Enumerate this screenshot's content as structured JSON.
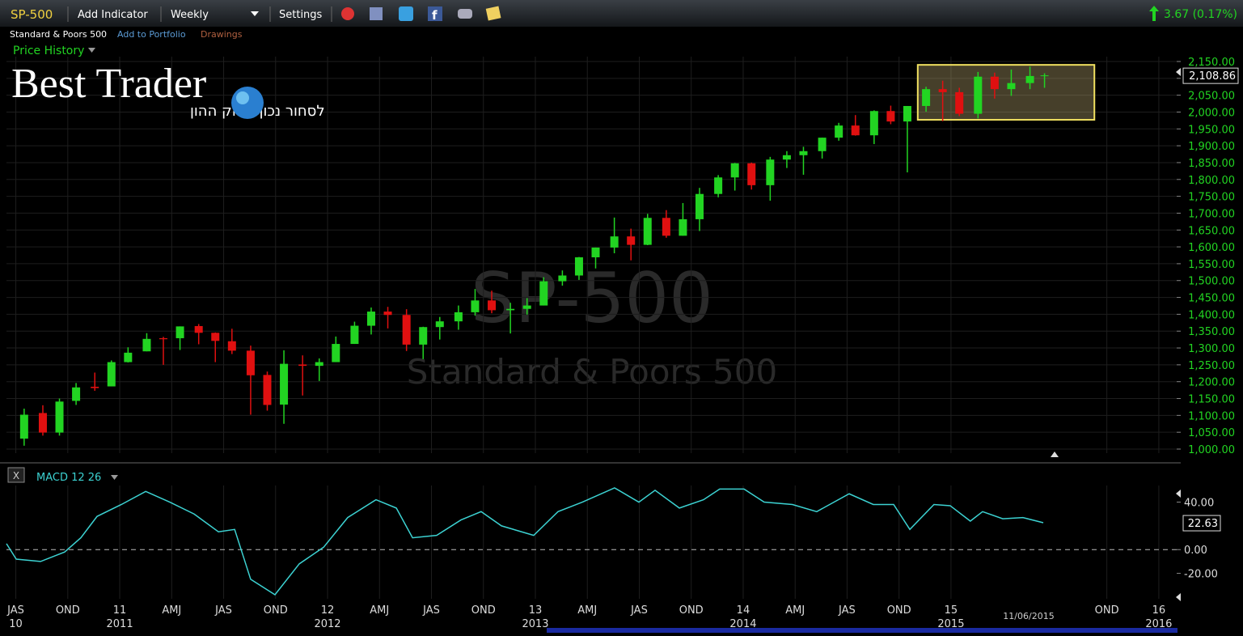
{
  "header": {
    "symbol": "SP-500",
    "add_indicator": "Add Indicator",
    "interval": "Weekly",
    "settings": "Settings",
    "change": "3.67 (0.17%)",
    "name": "Standard & Poors 500",
    "add_portfolio": "Add to Portfolio",
    "drawings": "Drawings",
    "price_history": "Price History",
    "logo": "Best Trader",
    "slogan": "לסחור נכון בשוק ההון",
    "close_button": "X",
    "date": "11/06/2015"
  },
  "chart_data": [
    {
      "type": "candlestick",
      "title": "SP-500",
      "subtitle": "Standard & Poors 500",
      "x": [
        2010.54,
        2010.63,
        2010.71,
        2010.79,
        2010.88,
        2010.96,
        2011.04,
        2011.13,
        2011.21,
        2011.29,
        2011.38,
        2011.46,
        2011.54,
        2011.63,
        2011.71,
        2011.79,
        2011.88,
        2011.96,
        2012.04,
        2012.13,
        2012.21,
        2012.29,
        2012.38,
        2012.46,
        2012.54,
        2012.63,
        2012.71,
        2012.79,
        2012.88,
        2012.96,
        2013.04,
        2013.13,
        2013.21,
        2013.29,
        2013.38,
        2013.46,
        2013.54,
        2013.63,
        2013.71,
        2013.79,
        2013.88,
        2013.96,
        2014.04,
        2014.13,
        2014.21,
        2014.29,
        2014.38,
        2014.46,
        2014.54,
        2014.63,
        2014.71,
        2014.79,
        2014.88,
        2014.96,
        2015.04,
        2015.13,
        2015.21,
        2015.29,
        2015.38,
        2015.45
      ],
      "open": [
        1031,
        1107,
        1049,
        1143,
        1185,
        1186,
        1258,
        1290,
        1329,
        1329,
        1365,
        1345,
        1320,
        1292,
        1220,
        1132,
        1251,
        1247,
        1258,
        1312,
        1366,
        1408,
        1398,
        1310,
        1362,
        1379,
        1406,
        1441,
        1412,
        1416,
        1426,
        1498,
        1515,
        1569,
        1598,
        1631,
        1606,
        1686,
        1633,
        1682,
        1757,
        1806,
        1848,
        1783,
        1859,
        1872,
        1884,
        1924,
        1960,
        1931,
        2003,
        1972,
        2018,
        2068,
        2059,
        1995,
        2105,
        2068,
        2086,
        2107
      ],
      "high": [
        1120,
        1130,
        1150,
        1196,
        1227,
        1263,
        1302,
        1344,
        1333,
        1364,
        1371,
        1346,
        1357,
        1307,
        1230,
        1293,
        1278,
        1269,
        1334,
        1378,
        1420,
        1422,
        1415,
        1363,
        1392,
        1426,
        1475,
        1470,
        1434,
        1448,
        1510,
        1530,
        1570,
        1598,
        1687,
        1654,
        1698,
        1709,
        1730,
        1775,
        1813,
        1849,
        1850,
        1867,
        1884,
        1897,
        1924,
        1968,
        1991,
        2005,
        2019,
        2018,
        2075,
        2093,
        2072,
        2119,
        2117,
        2126,
        2135,
        2115
      ],
      "low": [
        1010,
        1040,
        1040,
        1131,
        1173,
        1186,
        1257,
        1290,
        1250,
        1294,
        1311,
        1258,
        1282,
        1102,
        1114,
        1075,
        1159,
        1202,
        1258,
        1312,
        1340,
        1358,
        1291,
        1267,
        1325,
        1354,
        1396,
        1403,
        1343,
        1399,
        1426,
        1485,
        1502,
        1536,
        1581,
        1560,
        1605,
        1627,
        1633,
        1647,
        1747,
        1767,
        1770,
        1737,
        1834,
        1814,
        1862,
        1915,
        1930,
        1905,
        1964,
        1821,
        2001,
        1973,
        1988,
        1981,
        2040,
        2048,
        2068,
        2072
      ],
      "close": [
        1102,
        1049,
        1141,
        1183,
        1181,
        1258,
        1286,
        1327,
        1326,
        1364,
        1345,
        1321,
        1292,
        1219,
        1131,
        1253,
        1247,
        1258,
        1312,
        1366,
        1408,
        1398,
        1310,
        1362,
        1379,
        1406,
        1441,
        1412,
        1416,
        1426,
        1498,
        1515,
        1569,
        1598,
        1631,
        1606,
        1686,
        1633,
        1682,
        1757,
        1806,
        1848,
        1783,
        1859,
        1872,
        1884,
        1924,
        1960,
        1931,
        2003,
        1972,
        2018,
        2068,
        2059,
        1995,
        2105,
        2068,
        2086,
        2107,
        2108.86
      ],
      "up_color": "#22d422",
      "down_color": "#e01010",
      "xlim": [
        2010.455,
        2016.086
      ],
      "ylim": [
        1000,
        2150
      ],
      "yticks": [
        {
          "value": 1000,
          "label": "1,000.00"
        },
        {
          "value": 1050,
          "label": "1,050.00"
        },
        {
          "value": 1100,
          "label": "1,100.00"
        },
        {
          "value": 1150,
          "label": "1,150.00"
        },
        {
          "value": 1200,
          "label": "1,200.00"
        },
        {
          "value": 1250,
          "label": "1,250.00"
        },
        {
          "value": 1300,
          "label": "1,300.00"
        },
        {
          "value": 1350,
          "label": "1,350.00"
        },
        {
          "value": 1400,
          "label": "1,400.00"
        },
        {
          "value": 1450,
          "label": "1,450.00"
        },
        {
          "value": 1500,
          "label": "1,500.00"
        },
        {
          "value": 1550,
          "label": "1,550.00"
        },
        {
          "value": 1600,
          "label": "1,600.00"
        },
        {
          "value": 1650,
          "label": "1,650.00"
        },
        {
          "value": 1700,
          "label": "1,700.00"
        },
        {
          "value": 1750,
          "label": "1,750.00"
        },
        {
          "value": 1800,
          "label": "1,800.00"
        },
        {
          "value": 1850,
          "label": "1,850.00"
        },
        {
          "value": 1900,
          "label": "1,900.00"
        },
        {
          "value": 1950,
          "label": "1,950.00"
        },
        {
          "value": 2000,
          "label": "2,000.00"
        },
        {
          "value": 2050,
          "label": "2,050.00"
        },
        {
          "value": 2100,
          "label": "2,100.00"
        },
        {
          "value": 2150,
          "label": "2,150.00"
        }
      ],
      "xticks": [
        {
          "value": 2010.5,
          "label": "JAS"
        },
        {
          "value": 2010.75,
          "label": "OND"
        },
        {
          "value": 2011,
          "label": "11"
        },
        {
          "value": 2011.25,
          "label": "AMJ"
        },
        {
          "value": 2011.5,
          "label": "JAS"
        },
        {
          "value": 2011.75,
          "label": "OND"
        },
        {
          "value": 2012,
          "label": "12"
        },
        {
          "value": 2012.25,
          "label": "AMJ"
        },
        {
          "value": 2012.5,
          "label": "JAS"
        },
        {
          "value": 2012.75,
          "label": "OND"
        },
        {
          "value": 2013,
          "label": "13"
        },
        {
          "value": 2013.25,
          "label": "AMJ"
        },
        {
          "value": 2013.5,
          "label": "JAS"
        },
        {
          "value": 2013.75,
          "label": "OND"
        },
        {
          "value": 2014,
          "label": "14"
        },
        {
          "value": 2014.25,
          "label": "AMJ"
        },
        {
          "value": 2014.5,
          "label": "JAS"
        },
        {
          "value": 2014.75,
          "label": "OND"
        },
        {
          "value": 2015,
          "label": "15"
        },
        {
          "value": 2015.75,
          "label": "OND"
        },
        {
          "value": 2016,
          "label": "16"
        }
      ],
      "year_labels": [
        {
          "value": 2010.5,
          "label": "10"
        },
        {
          "value": 2011,
          "label": "2011"
        },
        {
          "value": 2012,
          "label": "2012"
        },
        {
          "value": 2013,
          "label": "2013"
        },
        {
          "value": 2014,
          "label": "2014"
        },
        {
          "value": 2015,
          "label": "2015"
        },
        {
          "value": 2016,
          "label": "2016"
        }
      ],
      "last_price": {
        "value": 2108.86,
        "label": "2,108.86"
      },
      "annotation_box": {
        "x": [
          2014.84,
          2015.69
        ],
        "y": [
          1977,
          2140
        ]
      },
      "grid": true
    },
    {
      "type": "line",
      "title": "MACD 12 26",
      "color": "#3cd2d2",
      "x": [
        2010.455,
        2010.502,
        2010.619,
        2010.735,
        2010.813,
        2010.891,
        2011.008,
        2011.125,
        2011.241,
        2011.358,
        2011.475,
        2011.553,
        2011.63,
        2011.747,
        2011.864,
        2011.981,
        2012.097,
        2012.233,
        2012.331,
        2012.409,
        2012.525,
        2012.642,
        2012.739,
        2012.837,
        2012.992,
        2013.109,
        2013.226,
        2013.381,
        2013.498,
        2013.576,
        2013.693,
        2013.809,
        2013.887,
        2014.004,
        2014.101,
        2014.237,
        2014.354,
        2014.51,
        2014.626,
        2014.724,
        2014.802,
        2014.918,
        2014.996,
        2015.093,
        2015.152,
        2015.249,
        2015.346,
        2015.444
      ],
      "values": [
        5,
        -8,
        -10,
        -2,
        10,
        28,
        38,
        49,
        40,
        30,
        15,
        17,
        -25,
        -38,
        -12,
        2,
        27,
        42,
        35,
        10,
        12,
        25,
        32,
        20,
        12,
        32,
        40,
        52,
        40,
        50,
        35,
        42,
        51,
        51,
        40,
        38,
        32,
        47,
        38,
        38,
        17,
        38,
        37,
        24,
        32,
        26,
        27,
        22.63
      ],
      "ylim": [
        -38,
        54
      ],
      "yticks": [
        {
          "value": 40,
          "label": "40.00"
        },
        {
          "value": 0,
          "label": "0.00"
        },
        {
          "value": -20,
          "label": "-20.00"
        }
      ],
      "last_value": {
        "value": 22.63,
        "label": "22.63"
      },
      "zero_line": true
    }
  ]
}
